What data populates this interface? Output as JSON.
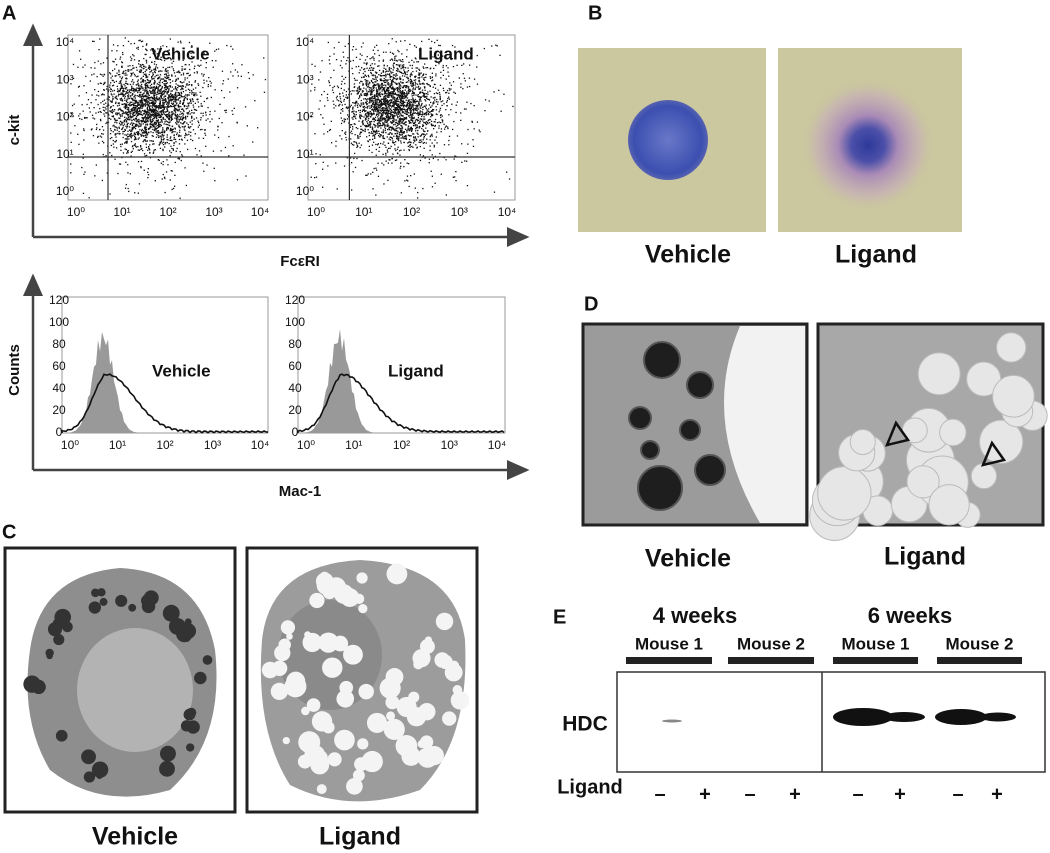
{
  "panels": {
    "A": {
      "label": "A",
      "scatter": {
        "plots": [
          {
            "title": "Vehicle"
          },
          {
            "title": "Ligand"
          }
        ],
        "x_label": "FcεRI",
        "y_label": "c-kit",
        "ticks": [
          "10⁰",
          "10¹",
          "10²",
          "10³",
          "10⁴"
        ]
      },
      "histogram": {
        "plots": [
          {
            "title": "Vehicle"
          },
          {
            "title": "Ligand"
          }
        ],
        "x_label": "Mac-1",
        "y_label": "Counts",
        "x_ticks": [
          "10⁰",
          "10¹",
          "10²",
          "10³",
          "10⁴"
        ],
        "y_ticks": [
          0,
          20,
          40,
          60,
          80,
          100,
          120
        ]
      }
    },
    "B": {
      "label": "B",
      "captions": [
        "Vehicle",
        "Ligand"
      ]
    },
    "C": {
      "label": "C",
      "captions": [
        "Vehicle",
        "Ligand"
      ]
    },
    "D": {
      "label": "D",
      "captions": [
        "Vehicle",
        "Ligand"
      ]
    },
    "E": {
      "label": "E",
      "groups": [
        {
          "title": "4 weeks",
          "mice": [
            "Mouse 1",
            "Mouse 2"
          ]
        },
        {
          "title": "6 weeks",
          "mice": [
            "Mouse 1",
            "Mouse 2"
          ]
        }
      ],
      "row_label": "HDC",
      "treatment_label": "Ligand",
      "signs": [
        "–",
        "+",
        "–",
        "+",
        "–",
        "+",
        "–",
        "+"
      ]
    }
  }
}
